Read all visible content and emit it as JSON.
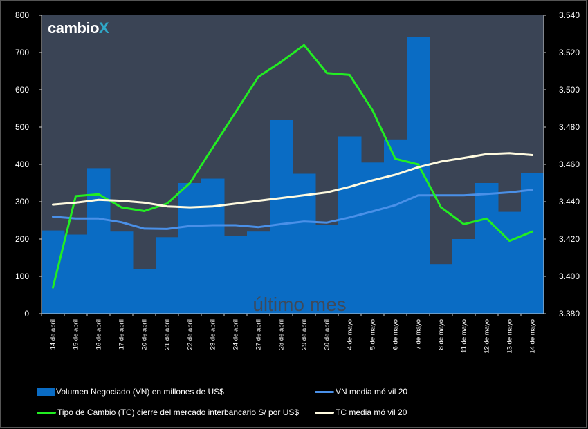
{
  "logo": {
    "text": "cambio",
    "x_mark": "X"
  },
  "watermark": "último mes",
  "colors": {
    "background": "#000000",
    "plot_area": "#3a4455",
    "bars": "#0a6cc4",
    "vn_ma": "#4a90e8",
    "tc": "#22ee22",
    "tc_ma": "#fffbe0"
  },
  "chart_data": {
    "type": "bar",
    "categories": [
      "14 de abril",
      "15 de abril",
      "16 de abril",
      "17 de abril",
      "20 de abril",
      "21 de abril",
      "22 de abril",
      "23 de abril",
      "24 de abril",
      "27 de abril",
      "28 de abril",
      "29 de abril",
      "30 de abril",
      "4 de mayo",
      "5 de mayo",
      "6 de mayo",
      "7 de mayo",
      "8 de mayo",
      "11 de mayo",
      "12 de mayo",
      "13 de mayo",
      "14 de mayo"
    ],
    "y_left": {
      "min": 0,
      "max": 800,
      "ticks": [
        "0",
        "100",
        "200",
        "300",
        "400",
        "500",
        "600",
        "700",
        "800"
      ]
    },
    "y_right": {
      "min": 3.38,
      "max": 3.54,
      "ticks": [
        "3.380",
        "3.400",
        "3.420",
        "3.440",
        "3.460",
        "3.480",
        "3.500",
        "3.520",
        "3.540"
      ]
    },
    "series": [
      {
        "name": "Volumen Negociado (VN) en millones de US$",
        "type": "bar",
        "axis": "left",
        "values": [
          223,
          212,
          390,
          220,
          120,
          205,
          350,
          362,
          208,
          220,
          520,
          375,
          238,
          475,
          405,
          467,
          742,
          133,
          200,
          350,
          273,
          377
        ]
      },
      {
        "name": "VN media móvil 20",
        "type": "line",
        "axis": "left",
        "values": [
          260,
          255,
          255,
          245,
          228,
          227,
          235,
          237,
          237,
          232,
          240,
          247,
          244,
          258,
          274,
          291,
          317,
          317,
          317,
          321,
          325,
          332
        ]
      },
      {
        "name": "Tipo de Cambio (TC) cierre del mercado interbancario S/ por US$",
        "type": "line",
        "axis": "right",
        "values": [
          3.394,
          3.443,
          3.444,
          3.437,
          3.435,
          3.439,
          3.45,
          3.469,
          3.488,
          3.507,
          3.515,
          3.524,
          3.509,
          3.508,
          3.489,
          3.463,
          3.46,
          3.437,
          3.428,
          3.431,
          3.419,
          3.424
        ]
      },
      {
        "name": "TC media móvil 20",
        "type": "line",
        "axis": "right",
        "values": [
          3.4385,
          3.4395,
          3.441,
          3.4405,
          3.4395,
          3.4375,
          3.437,
          3.4375,
          3.439,
          3.4405,
          3.442,
          3.4435,
          3.445,
          3.448,
          3.4515,
          3.4545,
          3.4585,
          3.4615,
          3.4635,
          3.4655,
          3.466,
          3.465
        ]
      }
    ],
    "legend": [
      {
        "label": "Volumen Negociado (VN) en millones de US$",
        "kind": "bar",
        "color": "#0a6cc4"
      },
      {
        "label": "VN media mó vil 20",
        "kind": "line",
        "color": "#4a90e8"
      },
      {
        "label": "Tipo de Cambio (TC) cierre del mercado interbancario S/ por US$",
        "kind": "line",
        "color": "#22ee22"
      },
      {
        "label": "TC media mó vil 20",
        "kind": "line",
        "color": "#fffbe0"
      }
    ]
  }
}
